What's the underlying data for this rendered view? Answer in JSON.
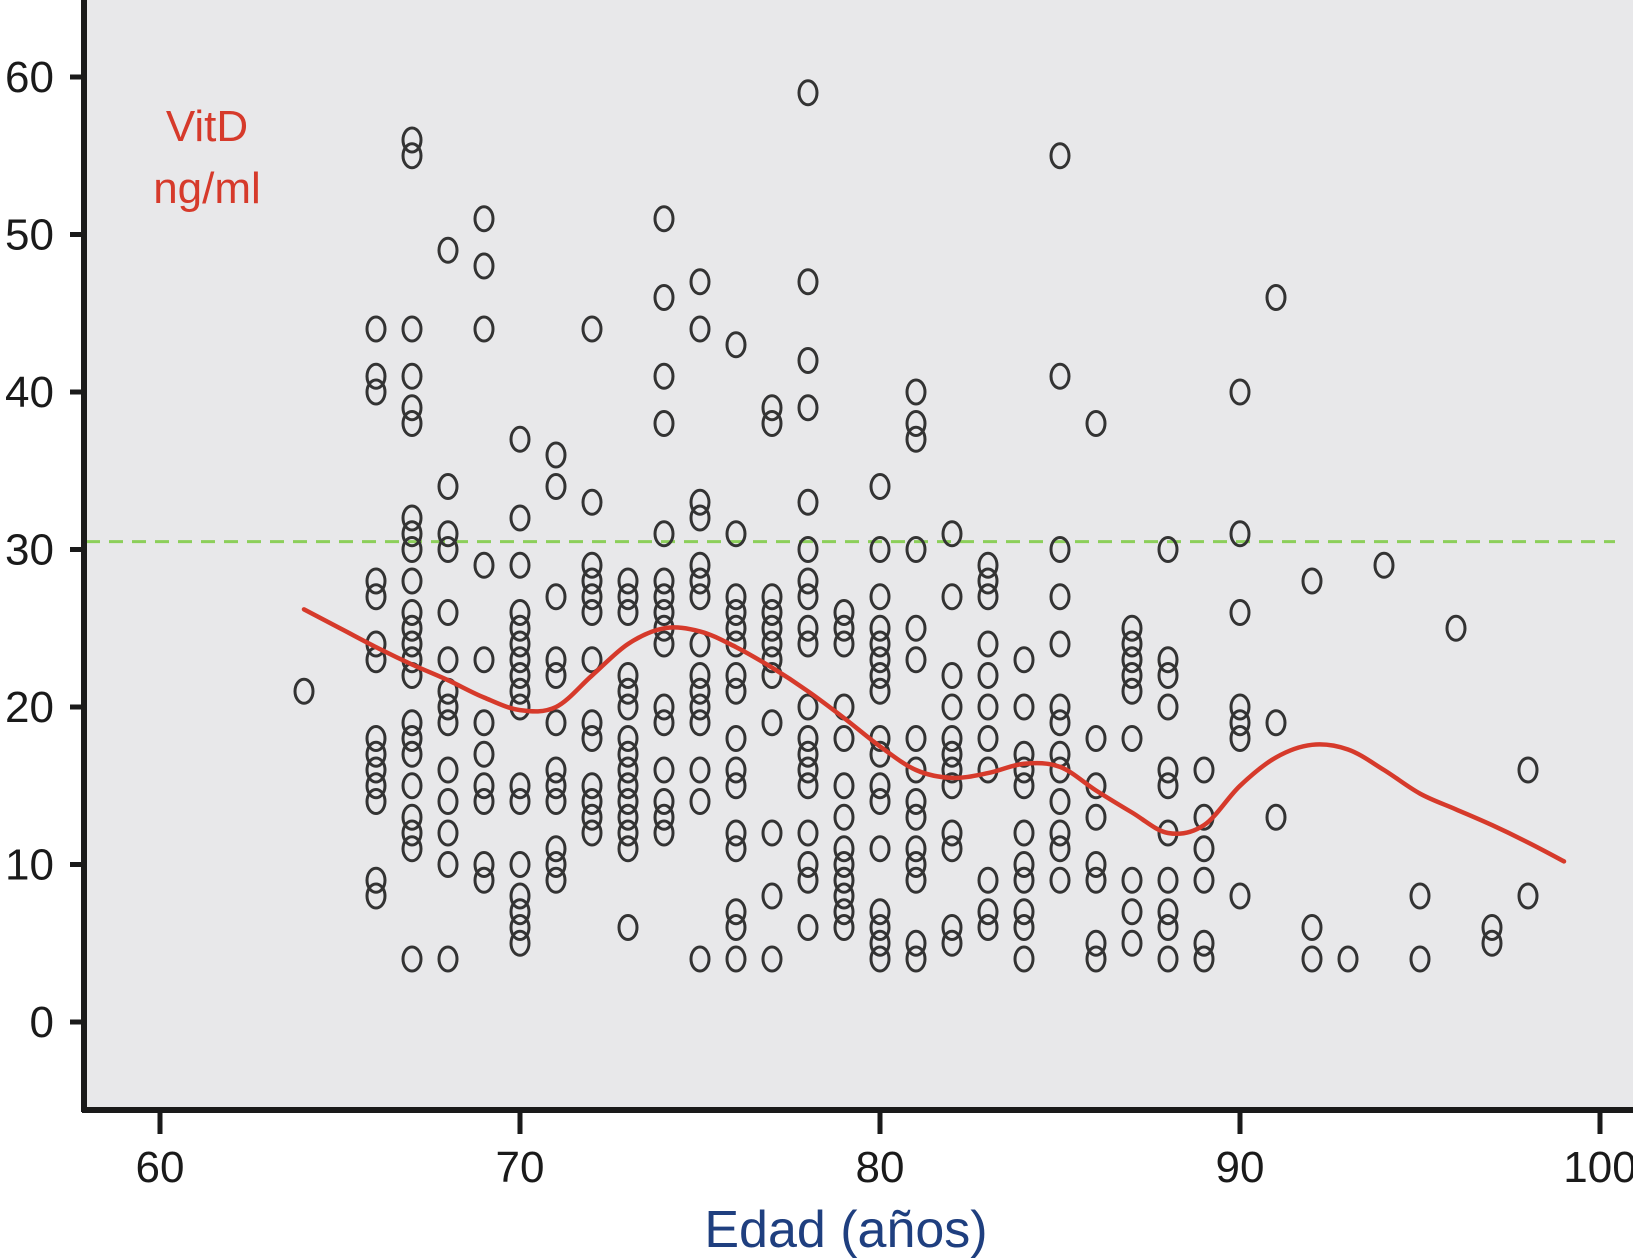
{
  "chart_data": {
    "type": "scatter",
    "xlabel": "Edad (años)",
    "ylabel_lines": [
      "VitD",
      "ng/ml"
    ],
    "x_ticks": [
      60,
      70,
      80,
      90,
      100
    ],
    "y_ticks": [
      0,
      10,
      20,
      30,
      40,
      50,
      60
    ],
    "xlim": [
      58,
      100
    ],
    "ylim": [
      -5.5,
      65
    ],
    "grid": false,
    "reference_line": {
      "y": 30.5,
      "style": "dashed"
    },
    "colors": {
      "background": "#e8e8ea",
      "points": "#333333",
      "trend": "#d63a2b",
      "reference": "#8ccf5a",
      "ylabel": "#d63a2b",
      "xlabel": "#1f3f7f"
    },
    "trend": {
      "x": [
        64,
        65,
        66,
        67,
        68,
        69,
        70,
        71,
        72,
        73,
        74,
        75,
        76,
        77,
        78,
        79,
        80,
        81,
        82,
        83,
        84,
        85,
        86,
        87,
        88,
        89,
        90,
        91,
        92,
        93,
        94,
        95,
        96,
        97,
        98,
        99
      ],
      "y": [
        26.2,
        25.0,
        23.8,
        22.7,
        21.7,
        20.6,
        19.8,
        20.0,
        22.0,
        24.0,
        25.0,
        24.8,
        23.8,
        22.5,
        21.0,
        19.3,
        17.5,
        16.0,
        15.5,
        15.8,
        16.4,
        16.2,
        14.7,
        13.3,
        12.0,
        12.5,
        15.0,
        16.8,
        17.6,
        17.3,
        16.0,
        14.5,
        13.5,
        12.5,
        11.4,
        10.2
      ]
    },
    "points": [
      [
        64,
        21
      ],
      [
        66,
        44
      ],
      [
        66,
        41
      ],
      [
        66,
        40
      ],
      [
        66,
        28
      ],
      [
        66,
        27
      ],
      [
        66,
        24
      ],
      [
        66,
        23
      ],
      [
        66,
        18
      ],
      [
        66,
        17
      ],
      [
        66,
        16
      ],
      [
        66,
        15
      ],
      [
        66,
        14
      ],
      [
        66,
        9
      ],
      [
        66,
        8
      ],
      [
        67,
        56
      ],
      [
        67,
        55
      ],
      [
        67,
        44
      ],
      [
        67,
        41
      ],
      [
        67,
        39
      ],
      [
        67,
        38
      ],
      [
        67,
        32
      ],
      [
        67,
        31
      ],
      [
        67,
        30
      ],
      [
        67,
        28
      ],
      [
        67,
        26
      ],
      [
        67,
        25
      ],
      [
        67,
        24
      ],
      [
        67,
        23
      ],
      [
        67,
        22
      ],
      [
        67,
        19
      ],
      [
        67,
        18
      ],
      [
        67,
        17
      ],
      [
        67,
        15
      ],
      [
        67,
        13
      ],
      [
        67,
        12
      ],
      [
        67,
        11
      ],
      [
        67,
        4
      ],
      [
        68,
        49
      ],
      [
        68,
        34
      ],
      [
        68,
        31
      ],
      [
        68,
        30
      ],
      [
        68,
        26
      ],
      [
        68,
        23
      ],
      [
        68,
        21
      ],
      [
        68,
        20
      ],
      [
        68,
        19
      ],
      [
        68,
        16
      ],
      [
        68,
        14
      ],
      [
        68,
        12
      ],
      [
        68,
        10
      ],
      [
        68,
        4
      ],
      [
        69,
        51
      ],
      [
        69,
        48
      ],
      [
        69,
        44
      ],
      [
        69,
        29
      ],
      [
        69,
        23
      ],
      [
        69,
        19
      ],
      [
        69,
        17
      ],
      [
        69,
        15
      ],
      [
        69,
        14
      ],
      [
        69,
        10
      ],
      [
        69,
        9
      ],
      [
        70,
        37
      ],
      [
        70,
        32
      ],
      [
        70,
        29
      ],
      [
        70,
        26
      ],
      [
        70,
        25
      ],
      [
        70,
        24
      ],
      [
        70,
        23
      ],
      [
        70,
        22
      ],
      [
        70,
        21
      ],
      [
        70,
        20
      ],
      [
        70,
        15
      ],
      [
        70,
        14
      ],
      [
        70,
        10
      ],
      [
        70,
        8
      ],
      [
        70,
        7
      ],
      [
        70,
        6
      ],
      [
        70,
        5
      ],
      [
        71,
        36
      ],
      [
        71,
        34
      ],
      [
        71,
        27
      ],
      [
        71,
        23
      ],
      [
        71,
        22
      ],
      [
        71,
        19
      ],
      [
        71,
        16
      ],
      [
        71,
        15
      ],
      [
        71,
        14
      ],
      [
        71,
        11
      ],
      [
        71,
        10
      ],
      [
        71,
        9
      ],
      [
        72,
        44
      ],
      [
        72,
        33
      ],
      [
        72,
        29
      ],
      [
        72,
        28
      ],
      [
        72,
        27
      ],
      [
        72,
        26
      ],
      [
        72,
        23
      ],
      [
        72,
        19
      ],
      [
        72,
        18
      ],
      [
        72,
        15
      ],
      [
        72,
        14
      ],
      [
        72,
        13
      ],
      [
        72,
        12
      ],
      [
        73,
        28
      ],
      [
        73,
        27
      ],
      [
        73,
        26
      ],
      [
        73,
        22
      ],
      [
        73,
        21
      ],
      [
        73,
        20
      ],
      [
        73,
        18
      ],
      [
        73,
        17
      ],
      [
        73,
        16
      ],
      [
        73,
        15
      ],
      [
        73,
        14
      ],
      [
        73,
        13
      ],
      [
        73,
        12
      ],
      [
        73,
        11
      ],
      [
        73,
        6
      ],
      [
        74,
        51
      ],
      [
        74,
        46
      ],
      [
        74,
        41
      ],
      [
        74,
        38
      ],
      [
        74,
        31
      ],
      [
        74,
        28
      ],
      [
        74,
        27
      ],
      [
        74,
        26
      ],
      [
        74,
        25
      ],
      [
        74,
        24
      ],
      [
        74,
        20
      ],
      [
        74,
        19
      ],
      [
        74,
        16
      ],
      [
        74,
        14
      ],
      [
        74,
        13
      ],
      [
        74,
        12
      ],
      [
        75,
        47
      ],
      [
        75,
        44
      ],
      [
        75,
        33
      ],
      [
        75,
        32
      ],
      [
        75,
        29
      ],
      [
        75,
        28
      ],
      [
        75,
        27
      ],
      [
        75,
        24
      ],
      [
        75,
        22
      ],
      [
        75,
        21
      ],
      [
        75,
        20
      ],
      [
        75,
        19
      ],
      [
        75,
        16
      ],
      [
        75,
        14
      ],
      [
        75,
        4
      ],
      [
        76,
        43
      ],
      [
        76,
        31
      ],
      [
        76,
        27
      ],
      [
        76,
        26
      ],
      [
        76,
        25
      ],
      [
        76,
        24
      ],
      [
        76,
        22
      ],
      [
        76,
        21
      ],
      [
        76,
        18
      ],
      [
        76,
        16
      ],
      [
        76,
        15
      ],
      [
        76,
        12
      ],
      [
        76,
        11
      ],
      [
        76,
        7
      ],
      [
        76,
        6
      ],
      [
        76,
        4
      ],
      [
        77,
        39
      ],
      [
        77,
        38
      ],
      [
        77,
        27
      ],
      [
        77,
        26
      ],
      [
        77,
        25
      ],
      [
        77,
        24
      ],
      [
        77,
        23
      ],
      [
        77,
        22
      ],
      [
        77,
        19
      ],
      [
        77,
        12
      ],
      [
        77,
        8
      ],
      [
        77,
        4
      ],
      [
        78,
        59
      ],
      [
        78,
        47
      ],
      [
        78,
        42
      ],
      [
        78,
        39
      ],
      [
        78,
        33
      ],
      [
        78,
        30
      ],
      [
        78,
        28
      ],
      [
        78,
        27
      ],
      [
        78,
        25
      ],
      [
        78,
        24
      ],
      [
        78,
        20
      ],
      [
        78,
        18
      ],
      [
        78,
        17
      ],
      [
        78,
        16
      ],
      [
        78,
        15
      ],
      [
        78,
        12
      ],
      [
        78,
        10
      ],
      [
        78,
        9
      ],
      [
        78,
        6
      ],
      [
        79,
        26
      ],
      [
        79,
        25
      ],
      [
        79,
        24
      ],
      [
        79,
        20
      ],
      [
        79,
        18
      ],
      [
        79,
        15
      ],
      [
        79,
        13
      ],
      [
        79,
        11
      ],
      [
        79,
        10
      ],
      [
        79,
        9
      ],
      [
        79,
        8
      ],
      [
        79,
        7
      ],
      [
        79,
        6
      ],
      [
        80,
        34
      ],
      [
        80,
        30
      ],
      [
        80,
        27
      ],
      [
        80,
        25
      ],
      [
        80,
        24
      ],
      [
        80,
        23
      ],
      [
        80,
        22
      ],
      [
        80,
        21
      ],
      [
        80,
        18
      ],
      [
        80,
        17
      ],
      [
        80,
        15
      ],
      [
        80,
        14
      ],
      [
        80,
        11
      ],
      [
        80,
        7
      ],
      [
        80,
        6
      ],
      [
        80,
        5
      ],
      [
        80,
        4
      ],
      [
        81,
        40
      ],
      [
        81,
        38
      ],
      [
        81,
        37
      ],
      [
        81,
        30
      ],
      [
        81,
        25
      ],
      [
        81,
        23
      ],
      [
        81,
        18
      ],
      [
        81,
        16
      ],
      [
        81,
        14
      ],
      [
        81,
        13
      ],
      [
        81,
        11
      ],
      [
        81,
        10
      ],
      [
        81,
        9
      ],
      [
        81,
        5
      ],
      [
        81,
        4
      ],
      [
        82,
        31
      ],
      [
        82,
        27
      ],
      [
        82,
        22
      ],
      [
        82,
        20
      ],
      [
        82,
        18
      ],
      [
        82,
        17
      ],
      [
        82,
        16
      ],
      [
        82,
        15
      ],
      [
        82,
        12
      ],
      [
        82,
        11
      ],
      [
        82,
        6
      ],
      [
        82,
        5
      ],
      [
        83,
        29
      ],
      [
        83,
        28
      ],
      [
        83,
        27
      ],
      [
        83,
        24
      ],
      [
        83,
        22
      ],
      [
        83,
        20
      ],
      [
        83,
        18
      ],
      [
        83,
        16
      ],
      [
        83,
        9
      ],
      [
        83,
        7
      ],
      [
        83,
        6
      ],
      [
        84,
        23
      ],
      [
        84,
        20
      ],
      [
        84,
        17
      ],
      [
        84,
        16
      ],
      [
        84,
        15
      ],
      [
        84,
        12
      ],
      [
        84,
        10
      ],
      [
        84,
        9
      ],
      [
        84,
        7
      ],
      [
        84,
        6
      ],
      [
        84,
        4
      ],
      [
        85,
        55
      ],
      [
        85,
        41
      ],
      [
        85,
        30
      ],
      [
        85,
        27
      ],
      [
        85,
        24
      ],
      [
        85,
        20
      ],
      [
        85,
        19
      ],
      [
        85,
        17
      ],
      [
        85,
        16
      ],
      [
        85,
        14
      ],
      [
        85,
        12
      ],
      [
        85,
        11
      ],
      [
        85,
        9
      ],
      [
        86,
        38
      ],
      [
        86,
        18
      ],
      [
        86,
        15
      ],
      [
        86,
        13
      ],
      [
        86,
        10
      ],
      [
        86,
        9
      ],
      [
        86,
        5
      ],
      [
        86,
        4
      ],
      [
        87,
        25
      ],
      [
        87,
        24
      ],
      [
        87,
        23
      ],
      [
        87,
        22
      ],
      [
        87,
        21
      ],
      [
        87,
        18
      ],
      [
        87,
        9
      ],
      [
        87,
        7
      ],
      [
        87,
        5
      ],
      [
        88,
        30
      ],
      [
        88,
        23
      ],
      [
        88,
        22
      ],
      [
        88,
        20
      ],
      [
        88,
        16
      ],
      [
        88,
        15
      ],
      [
        88,
        12
      ],
      [
        88,
        9
      ],
      [
        88,
        7
      ],
      [
        88,
        6
      ],
      [
        88,
        4
      ],
      [
        89,
        16
      ],
      [
        89,
        13
      ],
      [
        89,
        11
      ],
      [
        89,
        9
      ],
      [
        89,
        5
      ],
      [
        89,
        4
      ],
      [
        90,
        40
      ],
      [
        90,
        31
      ],
      [
        90,
        26
      ],
      [
        90,
        20
      ],
      [
        90,
        19
      ],
      [
        90,
        18
      ],
      [
        90,
        8
      ],
      [
        91,
        46
      ],
      [
        91,
        19
      ],
      [
        91,
        13
      ],
      [
        92,
        28
      ],
      [
        92,
        6
      ],
      [
        92,
        4
      ],
      [
        93,
        4
      ],
      [
        94,
        29
      ],
      [
        95,
        8
      ],
      [
        95,
        4
      ],
      [
        96,
        25
      ],
      [
        97,
        6
      ],
      [
        97,
        5
      ],
      [
        98,
        16
      ],
      [
        98,
        8
      ]
    ]
  }
}
